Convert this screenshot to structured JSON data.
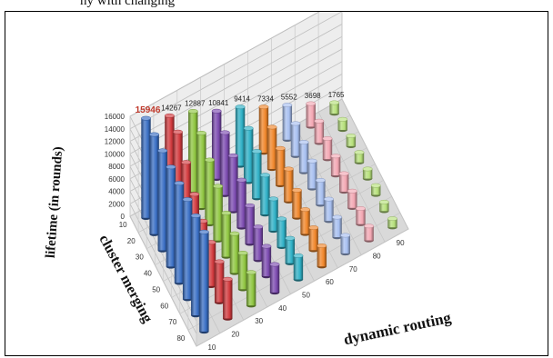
{
  "caption": "ny with changing",
  "chart_data": {
    "type": "bar3d",
    "title": "",
    "zlabel": "lifetime (in rounds)",
    "xlabel": "dynamic routing",
    "ylabel": "cluster merging",
    "x_ticks": [
      10,
      20,
      30,
      40,
      50,
      60,
      70,
      80,
      90
    ],
    "y_ticks": [
      10,
      20,
      30,
      40,
      50,
      60,
      70,
      80
    ],
    "z_ticks": [
      0,
      2000,
      4000,
      6000,
      8000,
      10000,
      12000,
      14000,
      16000
    ],
    "zlim": [
      0,
      16000
    ],
    "series_colors": [
      "#3a6fc4",
      "#d23a3e",
      "#8fc640",
      "#7c4bb0",
      "#2fb0c6",
      "#f0862a",
      "#a7bff0",
      "#f3a7b3",
      "#b6e07a"
    ],
    "series": [
      {
        "values": [
          15946,
          15946,
          15946,
          15946,
          15946,
          15946,
          15946,
          15946
        ]
      },
      {
        "values": [
          14267,
          14267,
          12000,
          9500,
          7800,
          7000,
          6500,
          6300
        ]
      },
      {
        "values": [
          12887,
          12000,
          10300,
          8700,
          7000,
          6300,
          5800,
          5300
        ]
      },
      {
        "values": [
          10841,
          10000,
          8900,
          7600,
          6100,
          5300,
          4800,
          4500
        ]
      },
      {
        "values": [
          9414,
          8600,
          7500,
          6300,
          5100,
          4500,
          4000,
          3800
        ]
      },
      {
        "values": [
          7334,
          6700,
          5900,
          5200,
          4400,
          3900,
          3600,
          3300
        ]
      },
      {
        "values": [
          5552,
          5200,
          4800,
          4400,
          3900,
          3500,
          3200,
          2900
        ]
      },
      {
        "values": [
          3698,
          3500,
          3300,
          3100,
          2900,
          2700,
          2500,
          2300
        ]
      },
      {
        "values": [
          1765,
          1700,
          1650,
          1600,
          1550,
          1500,
          1450,
          1400
        ]
      }
    ],
    "data_labels": [
      "15946",
      "14267",
      "12887",
      "10841",
      "9414",
      "7334",
      "5552",
      "3698",
      "1765"
    ],
    "grid": true
  }
}
